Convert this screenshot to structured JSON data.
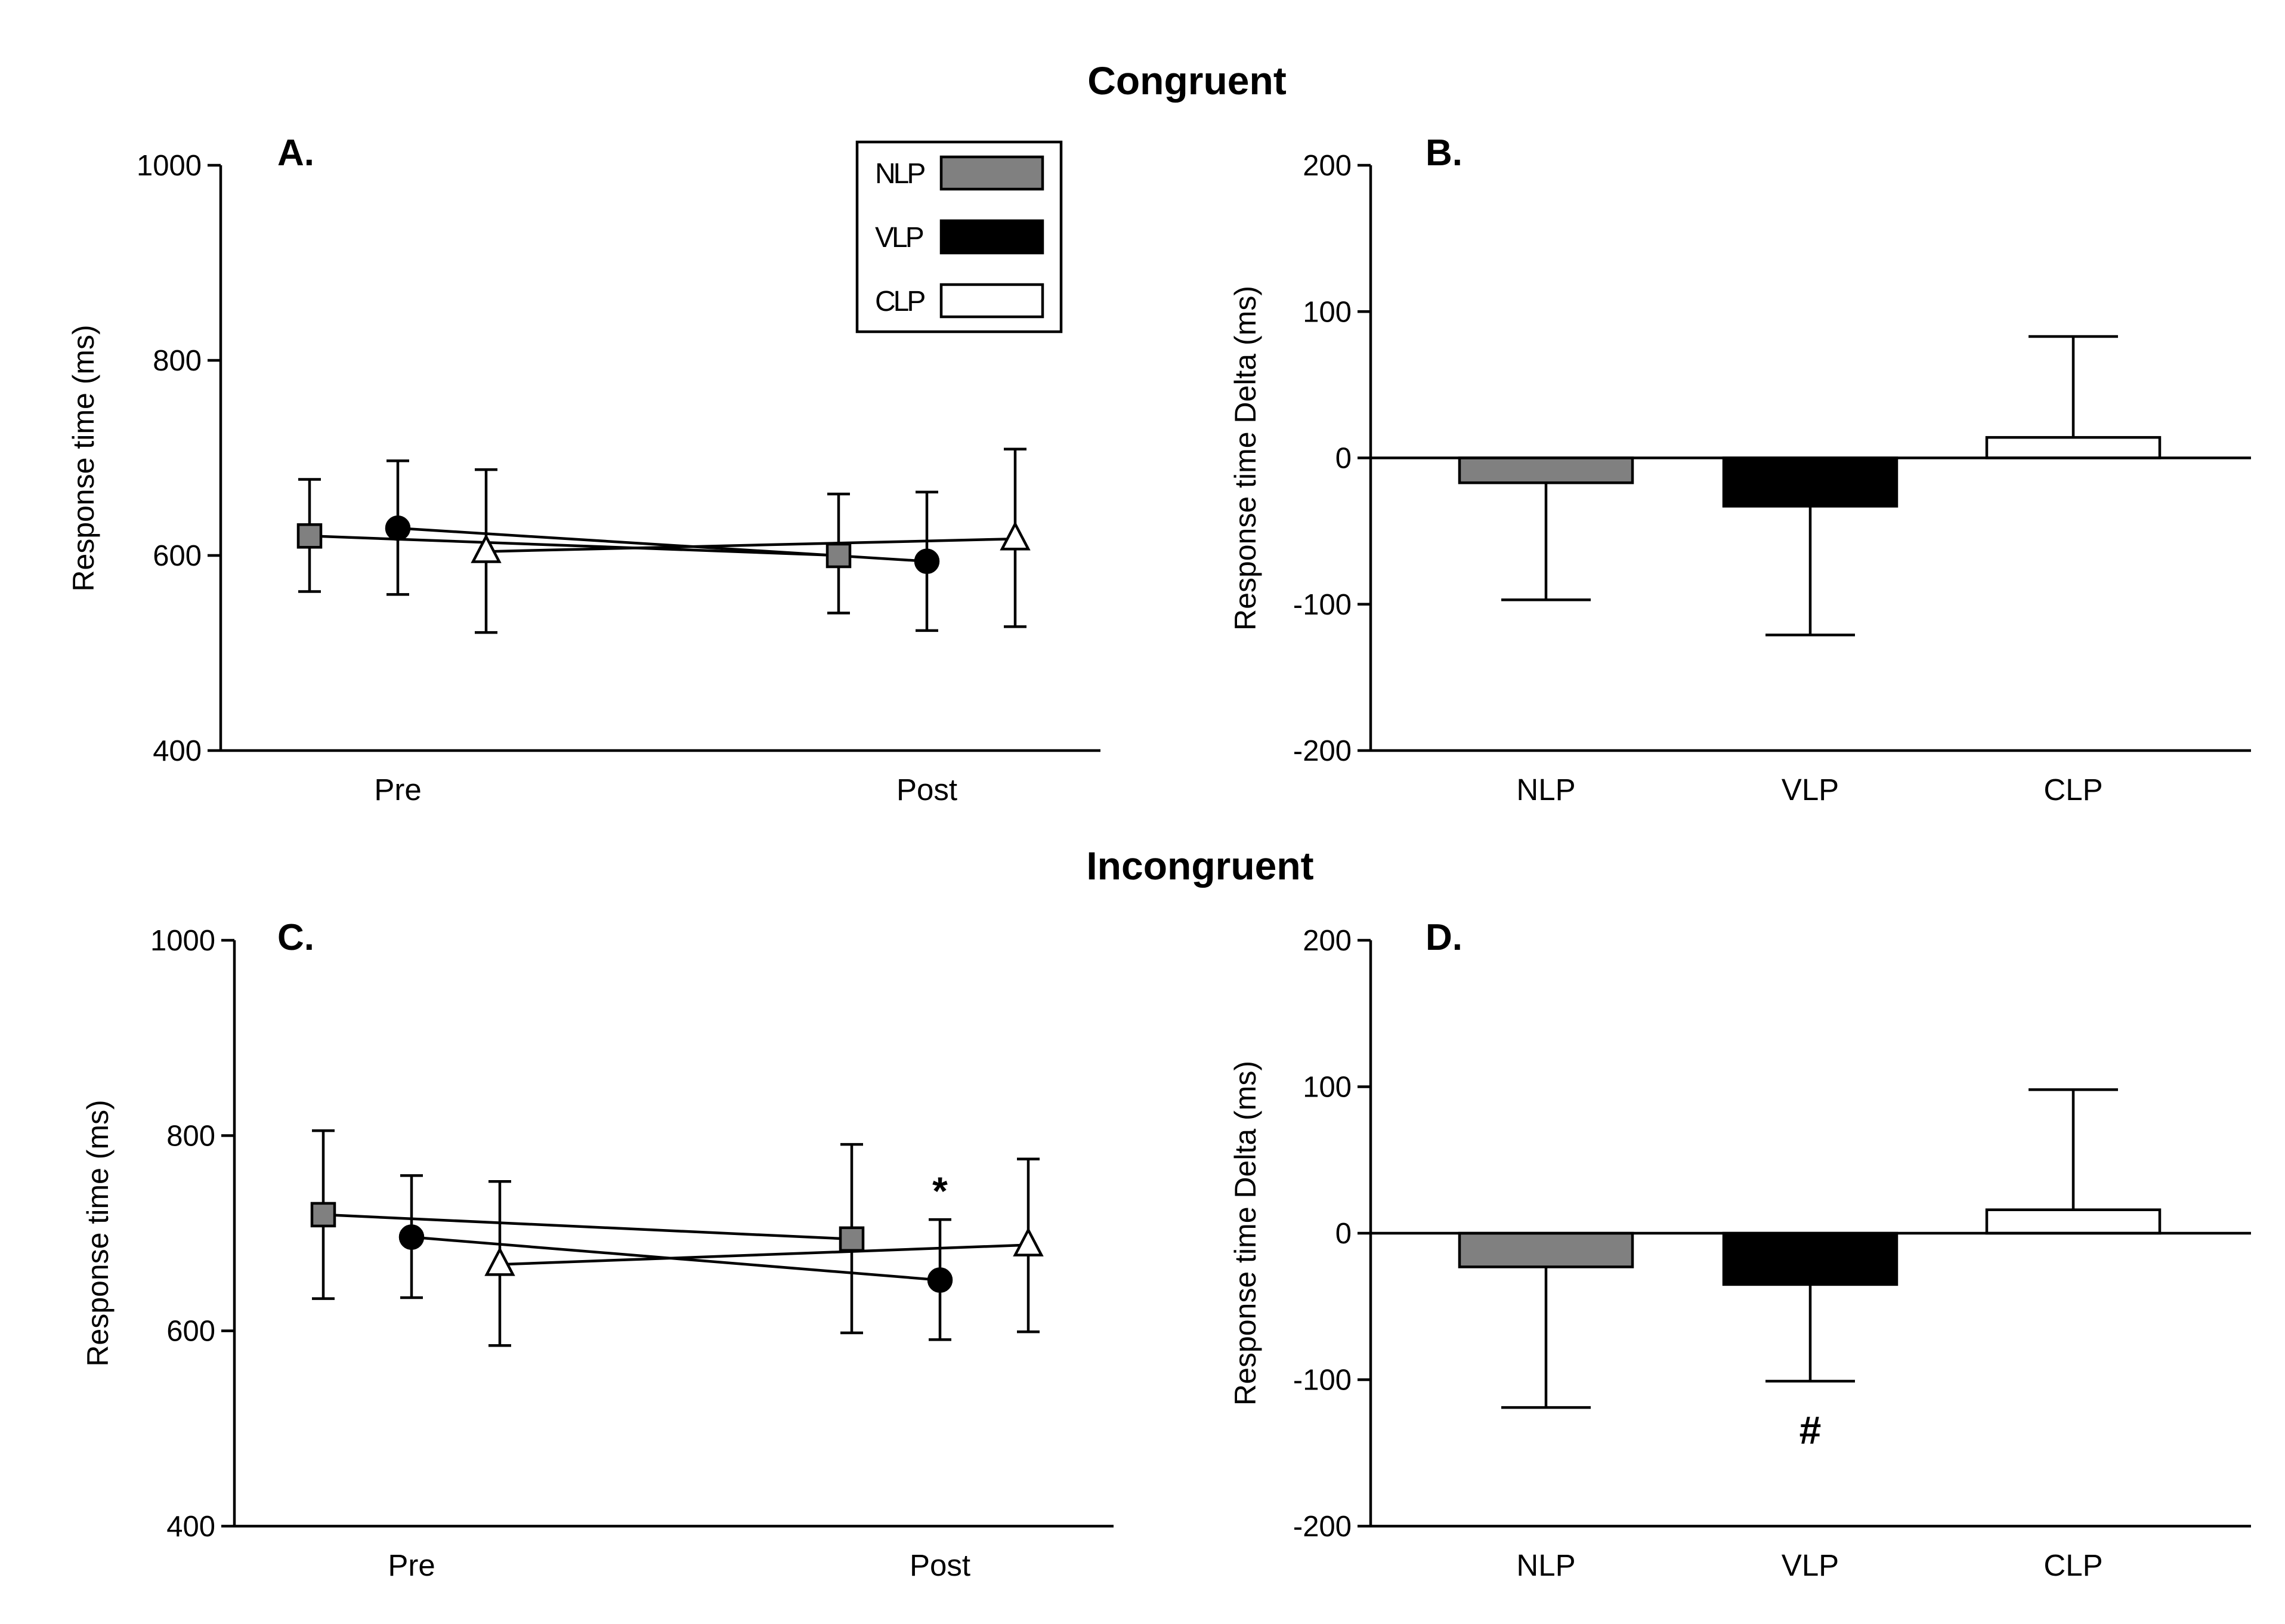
{
  "colors": {
    "NLP": "#808080",
    "VLP": "#000000",
    "CLP": "#ffffff"
  },
  "chart_data": [
    {
      "panel": "A.",
      "row_title": "Congruent",
      "type": "line",
      "xlabel": "",
      "ylabel": "Response time (ms)",
      "categories": [
        "Pre",
        "Post"
      ],
      "ylim": [
        400,
        1000
      ],
      "yticks": [
        400,
        600,
        800,
        1000
      ],
      "grid": false,
      "legend": {
        "position": "top-right",
        "entries": [
          {
            "label": "NLP",
            "color": "#808080"
          },
          {
            "label": "VLP",
            "color": "#000000"
          },
          {
            "label": "CLP",
            "color": "#ffffff"
          }
        ]
      },
      "series": [
        {
          "name": "NLP",
          "marker": "square",
          "values": [
            620,
            600
          ],
          "err_low": [
            563,
            541
          ],
          "err_high": [
            678,
            663
          ]
        },
        {
          "name": "VLP",
          "marker": "circle",
          "values": [
            628,
            594
          ],
          "err_low": [
            560,
            523
          ],
          "err_high": [
            697,
            665
          ]
        },
        {
          "name": "CLP",
          "marker": "triangle",
          "values": [
            604,
            617
          ],
          "err_low": [
            521,
            527
          ],
          "err_high": [
            688,
            709
          ]
        }
      ]
    },
    {
      "panel": "B.",
      "type": "bar",
      "xlabel": "",
      "ylabel": "Response time Delta (ms)",
      "categories": [
        "NLP",
        "VLP",
        "CLP"
      ],
      "ylim": [
        -200,
        200
      ],
      "yticks": [
        -200,
        -100,
        0,
        100,
        200
      ],
      "values": [
        -17,
        -33,
        14
      ],
      "err_end": [
        -97,
        -121,
        83
      ],
      "grid": false
    },
    {
      "panel": "C.",
      "row_title": "Incongruent",
      "type": "line",
      "xlabel": "",
      "ylabel": "Response time (ms)",
      "categories": [
        "Pre",
        "Post"
      ],
      "ylim": [
        400,
        1000
      ],
      "yticks": [
        400,
        600,
        800,
        1000
      ],
      "grid": false,
      "annotations": [
        {
          "text": "*",
          "series": "VLP",
          "category": "Post"
        }
      ],
      "series": [
        {
          "name": "NLP",
          "marker": "square",
          "values": [
            719,
            694
          ],
          "err_low": [
            633,
            598
          ],
          "err_high": [
            805,
            791
          ]
        },
        {
          "name": "VLP",
          "marker": "circle",
          "values": [
            696,
            652
          ],
          "err_low": [
            634,
            591
          ],
          "err_high": [
            759,
            714
          ]
        },
        {
          "name": "CLP",
          "marker": "triangle",
          "values": [
            668,
            688
          ],
          "err_low": [
            585,
            599
          ],
          "err_high": [
            753,
            776
          ]
        }
      ]
    },
    {
      "panel": "D.",
      "type": "bar",
      "xlabel": "",
      "ylabel": "Response time Delta (ms)",
      "categories": [
        "NLP",
        "VLP",
        "CLP"
      ],
      "ylim": [
        -200,
        200
      ],
      "yticks": [
        -200,
        -100,
        0,
        100,
        200
      ],
      "values": [
        -23,
        -35,
        16
      ],
      "err_end": [
        -119,
        -101,
        98
      ],
      "annotations": [
        {
          "text": "#",
          "category": "VLP"
        }
      ],
      "grid": false
    }
  ]
}
